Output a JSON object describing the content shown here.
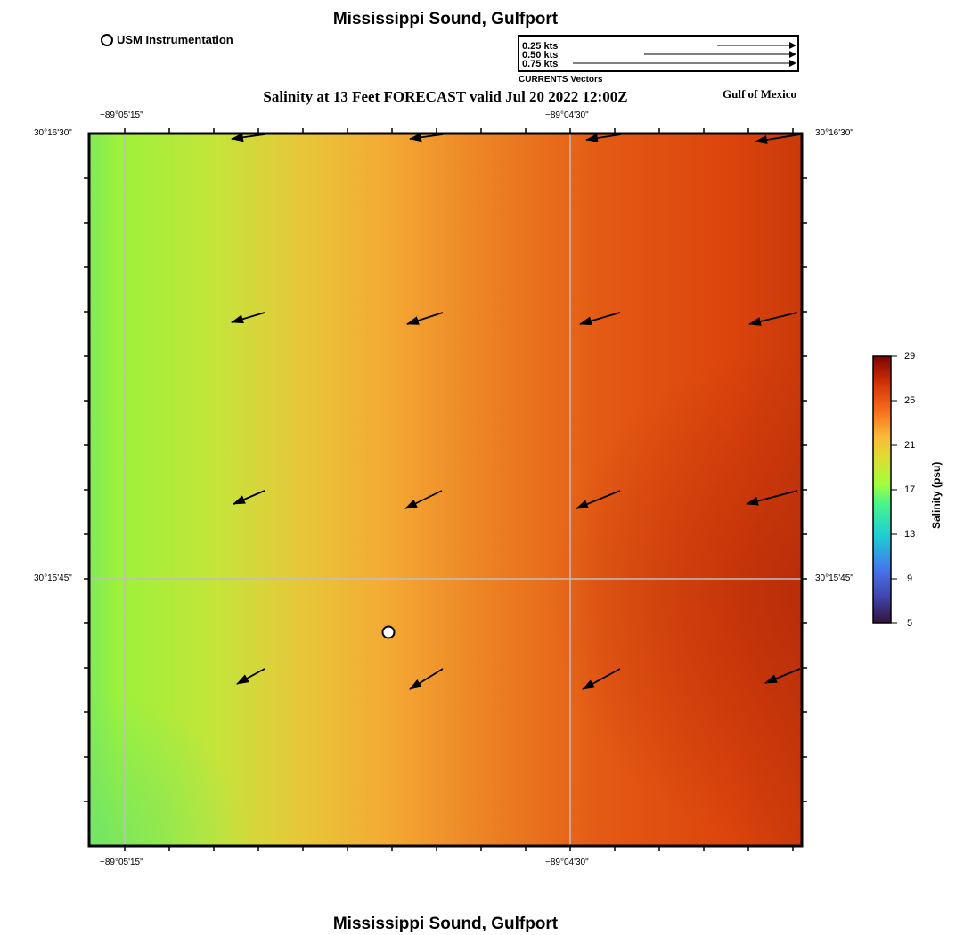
{
  "page_title": "Mississippi Sound, Gulfport",
  "bottom_title": "Mississippi Sound, Gulfport",
  "plot_title": "Salinity at 13 Feet FORECAST valid Jul 20 2022 12:00Z",
  "region_label": "Gulf of Mexico",
  "station_legend": {
    "marker": "open-circle",
    "label": "USM Instrumentation"
  },
  "vector_legend": {
    "caption": "CURRENTS Vectors",
    "entries": [
      {
        "label": "0.25 kts",
        "speed_kts": 0.25
      },
      {
        "label": "0.50 kts",
        "speed_kts": 0.5
      },
      {
        "label": "0.75 kts",
        "speed_kts": 0.75
      }
    ]
  },
  "axes": {
    "lon_ticks_top": [
      "−89°05'15\"",
      "−89°04'30\""
    ],
    "lon_ticks_bottom": [
      "−89°05'15\"",
      "−89°04'30\""
    ],
    "lat_ticks_left": [
      "30°16'30\"",
      "30°15'45\""
    ],
    "lat_ticks_right": [
      "30°16'30\"",
      "30°15'45\""
    ]
  },
  "colorbar": {
    "title": "Salinity (psu)",
    "ticks": [
      "29",
      "25",
      "21",
      "17",
      "13",
      "9",
      "5"
    ],
    "min": 5,
    "max": 29
  },
  "colors": {
    "low": "#9cf23a",
    "mid": "#f4a934",
    "high": "#d93d0d",
    "max": "#b82a0a"
  }
}
